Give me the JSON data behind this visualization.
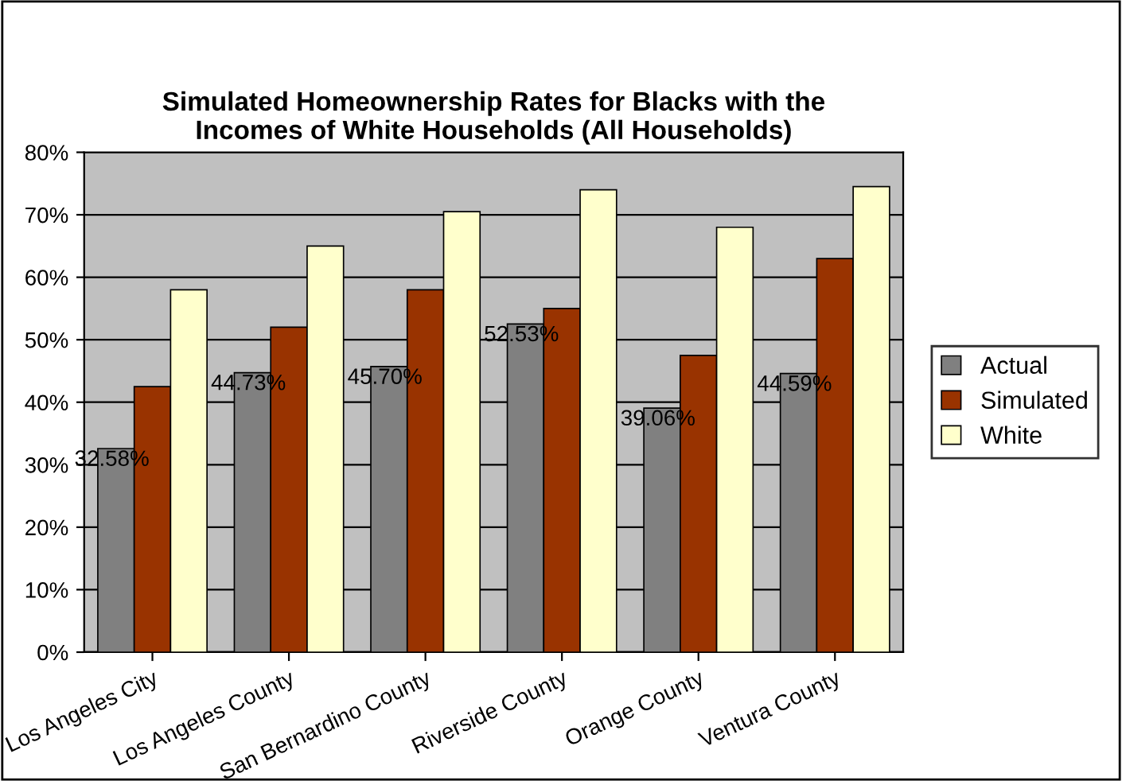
{
  "chart_data": {
    "type": "bar",
    "title": "Simulated Homeownership Rates for Blacks with the\nIncomes of White Households (All Households)",
    "categories": [
      "Los Angeles City",
      "Los Angeles County",
      "San Bernardino County",
      "Riverside County",
      "Orange County",
      "Ventura County"
    ],
    "series": [
      {
        "name": "Actual",
        "color": "#808080",
        "values": [
          32.58,
          44.73,
          45.7,
          52.53,
          39.06,
          44.59
        ],
        "value_labels": [
          "32.58%",
          "44.73%",
          "45.70%",
          "52.53%",
          "39.06%",
          "44.59%"
        ]
      },
      {
        "name": "Simulated",
        "color": "#993300",
        "values": [
          42.5,
          52,
          58,
          55,
          47.5,
          63
        ]
      },
      {
        "name": "White",
        "color": "#ffffcc",
        "values": [
          58,
          65,
          70.5,
          74,
          68,
          74.5
        ]
      }
    ],
    "ylim": [
      0,
      80
    ],
    "yticks": [
      {
        "value": 0,
        "label": "0%"
      },
      {
        "value": 10,
        "label": "10%"
      },
      {
        "value": 20,
        "label": "20%"
      },
      {
        "value": 30,
        "label": "30%"
      },
      {
        "value": 40,
        "label": "40%"
      },
      {
        "value": 50,
        "label": "50%"
      },
      {
        "value": 60,
        "label": "60%"
      },
      {
        "value": 70,
        "label": "70%"
      },
      {
        "value": 80,
        "label": "80%"
      }
    ],
    "grid": "y",
    "legend": "right"
  }
}
